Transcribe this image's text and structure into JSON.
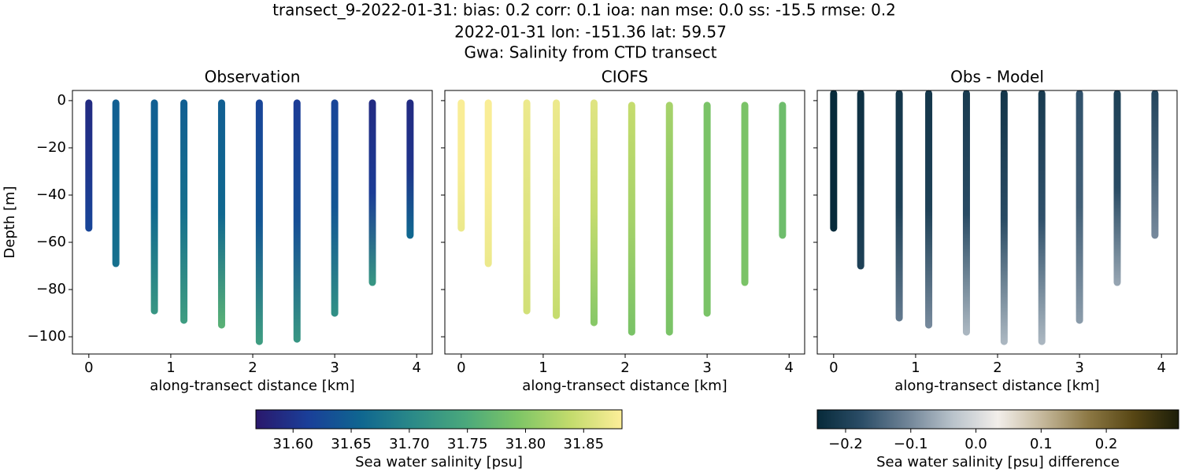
{
  "title": [
    "transect_9-2022-01-31: bias: 0.2  corr: 0.1  ioa: nan  mse: 0.0  ss: -15.5  rmse: 0.2",
    "2022-01-31 lon: -151.36 lat: 59.57",
    "Gwa: Salinity from CTD transect"
  ],
  "chart_data": [
    {
      "type": "scatter",
      "title": "Observation",
      "x_label": "along-transect distance [km]",
      "y_label": "Depth [m]",
      "xlim": [
        -0.2,
        4.19
      ],
      "ylim": [
        -107.3,
        4.3
      ],
      "xticks": [
        0,
        1,
        2,
        3,
        4
      ],
      "yticks": [
        {
          "value": -100,
          "label": "−100"
        },
        {
          "value": -80,
          "label": "−80"
        },
        {
          "value": -60,
          "label": "−60"
        },
        {
          "value": -40,
          "label": "−40"
        },
        {
          "value": -20,
          "label": "−20"
        },
        0
      ],
      "clim": [
        31.568,
        31.883
      ],
      "colormap": [
        "#2a186c",
        "#1a3f99",
        "#0f6690",
        "#2b8a88",
        "#4aa87c",
        "#7dc566",
        "#c2db6c",
        "#fdee99"
      ],
      "series": [
        {
          "x": [
            0,
            0,
            0
          ],
          "y": [
            -1,
            -27,
            -54
          ],
          "c": [
            31.59,
            31.6,
            31.62
          ]
        },
        {
          "x": [
            0.33,
            0.33,
            0.33
          ],
          "y": [
            -1,
            -35,
            -69
          ],
          "c": [
            31.65,
            31.66,
            31.67
          ]
        },
        {
          "x": [
            0.8,
            0.8,
            0.8
          ],
          "y": [
            -1,
            -45,
            -89
          ],
          "c": [
            31.65,
            31.66,
            31.72
          ]
        },
        {
          "x": [
            1.16,
            1.16,
            1.16
          ],
          "y": [
            -1,
            -47,
            -93
          ],
          "c": [
            31.65,
            31.67,
            31.73
          ]
        },
        {
          "x": [
            1.62,
            1.62,
            1.62
          ],
          "y": [
            -1,
            -48,
            -95
          ],
          "c": [
            31.65,
            31.66,
            31.76
          ]
        },
        {
          "x": [
            2.08,
            2.08,
            2.08
          ],
          "y": [
            -1,
            -51,
            -102
          ],
          "c": [
            31.62,
            31.64,
            31.73
          ]
        },
        {
          "x": [
            2.54,
            2.54,
            2.54
          ],
          "y": [
            -1,
            -51,
            -101
          ],
          "c": [
            31.61,
            31.63,
            31.72
          ]
        },
        {
          "x": [
            3.0,
            3.0,
            3.0
          ],
          "y": [
            -1,
            -45,
            -90
          ],
          "c": [
            31.62,
            31.64,
            31.71
          ]
        },
        {
          "x": [
            3.46,
            3.46,
            3.46
          ],
          "y": [
            -1,
            -39,
            -77
          ],
          "c": [
            31.59,
            31.61,
            31.72
          ]
        },
        {
          "x": [
            3.92,
            3.92,
            3.92
          ],
          "y": [
            -1,
            -29,
            -57
          ],
          "c": [
            31.59,
            31.6,
            31.66
          ]
        }
      ]
    },
    {
      "type": "scatter",
      "title": "CIOFS",
      "x_label": "along-transect distance [km]",
      "xlim": [
        -0.2,
        4.19
      ],
      "ylim": [
        -107.3,
        4.3
      ],
      "xticks": [
        0,
        1,
        2,
        3,
        4
      ],
      "clim": [
        31.568,
        31.883
      ],
      "colormap": [
        "#2a186c",
        "#1a3f99",
        "#0f6690",
        "#2b8a88",
        "#4aa87c",
        "#7dc566",
        "#c2db6c",
        "#fdee99"
      ],
      "series": [
        {
          "x": [
            0,
            0,
            0
          ],
          "y": [
            -1,
            -27,
            -54
          ],
          "c": [
            31.88,
            31.88,
            31.87
          ]
        },
        {
          "x": [
            0.33,
            0.33,
            0.33
          ],
          "y": [
            -1,
            -35,
            -69
          ],
          "c": [
            31.88,
            31.88,
            31.87
          ]
        },
        {
          "x": [
            0.8,
            0.8,
            0.8
          ],
          "y": [
            -1,
            -45,
            -89
          ],
          "c": [
            31.87,
            31.86,
            31.85
          ]
        },
        {
          "x": [
            1.16,
            1.16,
            1.16
          ],
          "y": [
            -1,
            -46,
            -91
          ],
          "c": [
            31.87,
            31.86,
            31.84
          ]
        },
        {
          "x": [
            1.62,
            1.62,
            1.62
          ],
          "y": [
            -1,
            -47,
            -94
          ],
          "c": [
            31.86,
            31.84,
            31.8
          ]
        },
        {
          "x": [
            2.08,
            2.08,
            2.08
          ],
          "y": [
            -2,
            -50,
            -98
          ],
          "c": [
            31.84,
            31.82,
            31.79
          ]
        },
        {
          "x": [
            2.54,
            2.54,
            2.54
          ],
          "y": [
            -2,
            -50,
            -98
          ],
          "c": [
            31.82,
            31.8,
            31.79
          ]
        },
        {
          "x": [
            3.0,
            3.0,
            3.0
          ],
          "y": [
            -2,
            -46,
            -90
          ],
          "c": [
            31.79,
            31.79,
            31.79
          ]
        },
        {
          "x": [
            3.46,
            3.46,
            3.46
          ],
          "y": [
            -2,
            -40,
            -77
          ],
          "c": [
            31.79,
            31.79,
            31.79
          ]
        },
        {
          "x": [
            3.92,
            3.92,
            3.92
          ],
          "y": [
            -2,
            -30,
            -57
          ],
          "c": [
            31.78,
            31.78,
            31.78
          ]
        }
      ]
    },
    {
      "type": "scatter",
      "title": "Obs - Model",
      "x_label": "along-transect distance [km]",
      "xlim": [
        -0.2,
        4.19
      ],
      "ylim": [
        -107.3,
        4.3
      ],
      "xticks": [
        0,
        1,
        2,
        3,
        4
      ],
      "clim": [
        -0.2435,
        0.311
      ],
      "colormap": [
        "#072a3a",
        "#2c4e68",
        "#708497",
        "#b9c3cb",
        "#f2eeea",
        "#c4b79a",
        "#8c7844",
        "#574614",
        "#1c1e09"
      ],
      "series": [
        {
          "x": [
            0,
            0,
            0
          ],
          "y": [
            3,
            -26,
            -54
          ],
          "c": [
            -0.29,
            -0.27,
            -0.25
          ]
        },
        {
          "x": [
            0.33,
            0.33,
            0.33
          ],
          "y": [
            3,
            -34,
            -70
          ],
          "c": [
            -0.23,
            -0.22,
            -0.2
          ]
        },
        {
          "x": [
            0.8,
            0.8,
            0.8
          ],
          "y": [
            3,
            -45,
            -92
          ],
          "c": [
            -0.22,
            -0.2,
            -0.12
          ]
        },
        {
          "x": [
            1.16,
            1.16,
            1.16
          ],
          "y": [
            3,
            -46,
            -95
          ],
          "c": [
            -0.22,
            -0.2,
            -0.1
          ]
        },
        {
          "x": [
            1.62,
            1.62,
            1.62
          ],
          "y": [
            3,
            -48,
            -98
          ],
          "c": [
            -0.21,
            -0.18,
            -0.05
          ]
        },
        {
          "x": [
            2.08,
            2.08,
            2.08
          ],
          "y": [
            3,
            -50,
            -102
          ],
          "c": [
            -0.22,
            -0.18,
            -0.05
          ]
        },
        {
          "x": [
            2.54,
            2.54,
            2.54
          ],
          "y": [
            3,
            -50,
            -102
          ],
          "c": [
            -0.21,
            -0.17,
            -0.05
          ]
        },
        {
          "x": [
            3.0,
            3.0,
            3.0
          ],
          "y": [
            3,
            -45,
            -93
          ],
          "c": [
            -0.17,
            -0.15,
            -0.08
          ]
        },
        {
          "x": [
            3.46,
            3.46,
            3.46
          ],
          "y": [
            3,
            -37,
            -77
          ],
          "c": [
            -0.2,
            -0.18,
            -0.07
          ]
        },
        {
          "x": [
            3.92,
            3.92,
            3.92
          ],
          "y": [
            3,
            -27,
            -57
          ],
          "c": [
            -0.19,
            -0.15,
            -0.1
          ]
        }
      ]
    },
    {
      "type": "colorbar",
      "label": "Sea water salinity [psu]",
      "lim": [
        31.568,
        31.883
      ],
      "ticks": [
        {
          "value": 31.6,
          "label": "31.60"
        },
        {
          "value": 31.65,
          "label": "31.65"
        },
        {
          "value": 31.7,
          "label": "31.70"
        },
        {
          "value": 31.75,
          "label": "31.75"
        },
        {
          "value": 31.8,
          "label": "31.80"
        },
        {
          "value": 31.85,
          "label": "31.85"
        }
      ],
      "colormap": [
        "#2a186c",
        "#1a3f99",
        "#0f6690",
        "#2b8a88",
        "#4aa87c",
        "#7dc566",
        "#c2db6c",
        "#fdee99"
      ]
    },
    {
      "type": "colorbar",
      "label": "Sea water salinity [psu] difference",
      "lim": [
        -0.2435,
        0.311
      ],
      "ticks": [
        {
          "value": -0.2,
          "label": "−0.2"
        },
        {
          "value": -0.1,
          "label": "−0.1"
        },
        {
          "value": 0,
          "label": "0.0"
        },
        0.1,
        0.2
      ],
      "colormap": [
        "#072a3a",
        "#2c4e68",
        "#708497",
        "#b9c3cb",
        "#f2eeea",
        "#c4b79a",
        "#8c7844",
        "#574614",
        "#1c1e09"
      ]
    }
  ]
}
